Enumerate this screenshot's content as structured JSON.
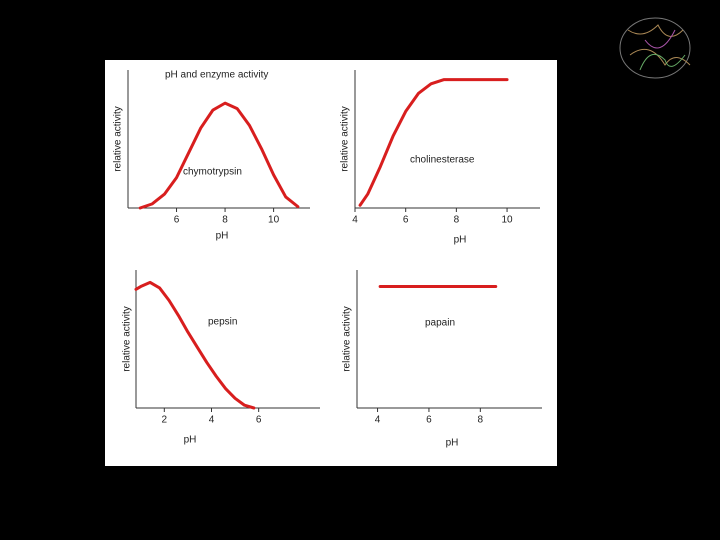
{
  "title": "pH and enzyme activity",
  "chart_data": [
    {
      "type": "line",
      "annotation": "chymotrypsin",
      "xlabel": "pH",
      "ylabel": "relative activity",
      "color": "#d81e1e",
      "x": [
        4.5,
        5,
        5.5,
        6,
        6.5,
        7,
        7.5,
        8,
        8.5,
        9,
        9.5,
        10,
        10.5,
        11
      ],
      "values": [
        0,
        0.03,
        0.1,
        0.22,
        0.4,
        0.58,
        0.71,
        0.76,
        0.72,
        0.6,
        0.43,
        0.24,
        0.08,
        0.01
      ],
      "xlim": [
        4,
        11.5
      ],
      "xticks": [
        6,
        8,
        10
      ],
      "ylim": [
        0,
        1
      ]
    },
    {
      "type": "line",
      "annotation": "cholinesterase",
      "xlabel": "pH",
      "ylabel": "relative activity",
      "color": "#d81e1e",
      "x": [
        4.2,
        4.5,
        5,
        5.5,
        6,
        6.5,
        7,
        7.5,
        8,
        10
      ],
      "values": [
        0.02,
        0.1,
        0.3,
        0.52,
        0.7,
        0.83,
        0.9,
        0.93,
        0.93,
        0.93
      ],
      "xlim": [
        4,
        11.3
      ],
      "xticks": [
        4,
        6,
        8,
        10
      ],
      "ylim": [
        0,
        1
      ]
    },
    {
      "type": "line",
      "annotation": "pepsin",
      "xlabel": "pH",
      "ylabel": "relative activity",
      "color": "#d81e1e",
      "x": [
        0.8,
        1.0,
        1.4,
        1.8,
        2.2,
        2.6,
        3,
        3.4,
        3.8,
        4.2,
        4.6,
        5,
        5.4,
        5.8
      ],
      "values": [
        0.86,
        0.88,
        0.91,
        0.87,
        0.78,
        0.67,
        0.55,
        0.44,
        0.33,
        0.23,
        0.14,
        0.07,
        0.02,
        0
      ],
      "xlim": [
        0.8,
        8.6
      ],
      "xticks": [
        2,
        4,
        6
      ],
      "ylim": [
        0,
        1
      ]
    },
    {
      "type": "line",
      "annotation": "papain",
      "xlabel": "pH",
      "ylabel": "relative activity",
      "color": "#d81e1e",
      "x": [
        4.1,
        8.6
      ],
      "values": [
        0.88,
        0.88
      ],
      "xlim": [
        3.2,
        10.4
      ],
      "xticks": [
        4,
        6,
        8
      ],
      "ylim": [
        0,
        1
      ]
    }
  ]
}
